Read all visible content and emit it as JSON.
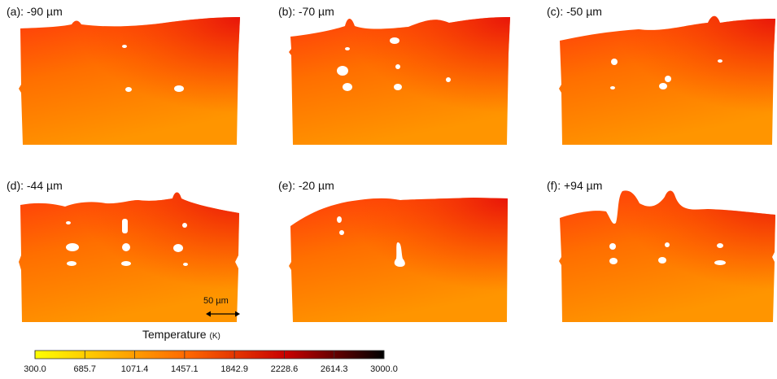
{
  "panels": [
    {
      "id": "a",
      "label": "(a): -90 µm"
    },
    {
      "id": "b",
      "label": "(b): -70 µm"
    },
    {
      "id": "c",
      "label": "(c): -50 µm"
    },
    {
      "id": "d",
      "label": "(d): -44 µm"
    },
    {
      "id": "e",
      "label": "(e): -20 µm"
    },
    {
      "id": "f",
      "label": "(f): +94 µm"
    }
  ],
  "scale_bar": {
    "label": "50 µm"
  },
  "colorbar": {
    "title": "Temperature",
    "unit": "(K)",
    "ticks": [
      "300.0",
      "685.7",
      "1071.4",
      "1457.1",
      "1842.9",
      "2228.6",
      "2614.3",
      "3000.0"
    ],
    "colors": [
      "#ffff00",
      "#ff6a00",
      "#c80000",
      "#000000"
    ]
  }
}
